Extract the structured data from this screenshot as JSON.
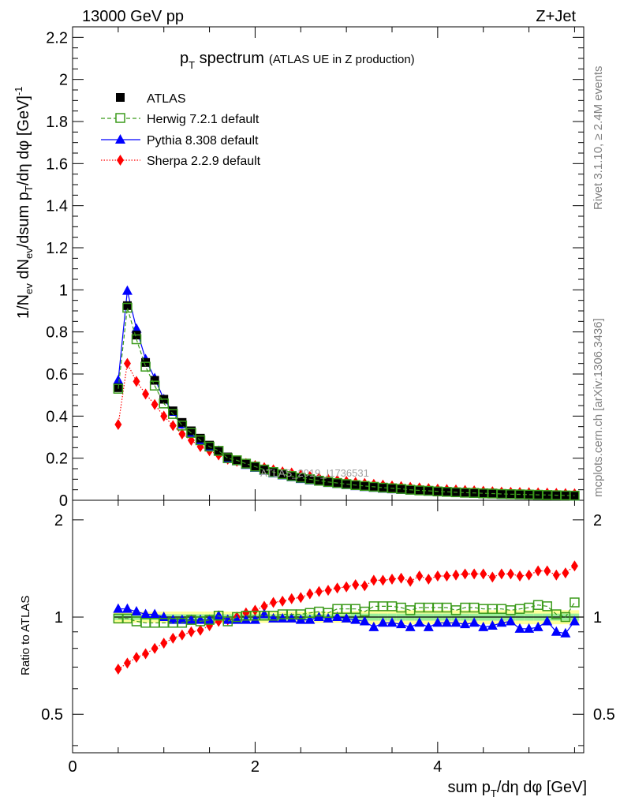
{
  "header": {
    "energy": "13000 GeV pp",
    "process": "Z+Jet",
    "title_main": "p",
    "title_sub": "T",
    "title_rest": " spectrum",
    "title_paren": "(ATLAS UE in Z production)"
  },
  "side": {
    "rivet": "Rivet 3.1.10, ≥ 2.4M events",
    "mcplots": "mcplots.cern.ch [arXiv:1306.3436]"
  },
  "watermark": "ATLAS_2019_I1736531",
  "legend": [
    {
      "label": "ATLAS",
      "color": "#000000",
      "marker": "filled-square"
    },
    {
      "label": "Herwig 7.2.1 default",
      "color": "#3a9a1a",
      "marker": "open-square"
    },
    {
      "label": "Pythia 8.308 default",
      "color": "#0000ff",
      "marker": "filled-triangle"
    },
    {
      "label": "Sherpa 2.2.9 default",
      "color": "#ff0000",
      "marker": "filled-diamond"
    }
  ],
  "axes": {
    "ylabel_main": "1/N_ev dN_ev/dsum p_T/dη dφ [GeV]^-1",
    "ylabel_ratio": "Ratio to ATLAS",
    "xlabel": "sum p_T/dη dφ [GeV]"
  },
  "chart_data": {
    "type": "line",
    "x": [
      0.5,
      0.6,
      0.7,
      0.8,
      0.9,
      1.0,
      1.1,
      1.2,
      1.3,
      1.4,
      1.5,
      1.6,
      1.7,
      1.8,
      1.9,
      2.0,
      2.1,
      2.2,
      2.3,
      2.4,
      2.5,
      2.6,
      2.7,
      2.8,
      2.9,
      3.0,
      3.1,
      3.2,
      3.3,
      3.4,
      3.5,
      3.6,
      3.7,
      3.8,
      3.9,
      4.0,
      4.1,
      4.2,
      4.3,
      4.4,
      4.5,
      4.6,
      4.7,
      4.8,
      4.9,
      5.0,
      5.1,
      5.2,
      5.3,
      5.4,
      5.5
    ],
    "xlim": [
      0,
      5.6
    ],
    "main": {
      "ylim": [
        0,
        2.25
      ],
      "yticks": [
        0,
        0.2,
        0.4,
        0.6,
        0.8,
        1,
        1.2,
        1.4,
        1.6,
        1.8,
        2,
        2.2
      ],
      "series": [
        {
          "name": "ATLAS",
          "values": [
            0.535,
            0.925,
            0.785,
            0.655,
            0.57,
            0.48,
            0.425,
            0.37,
            0.33,
            0.295,
            0.262,
            0.232,
            0.206,
            0.19,
            0.172,
            0.158,
            0.144,
            0.132,
            0.122,
            0.113,
            0.105,
            0.098,
            0.091,
            0.085,
            0.08,
            0.075,
            0.07,
            0.066,
            0.062,
            0.058,
            0.055,
            0.052,
            0.049,
            0.046,
            0.044,
            0.041,
            0.039,
            0.037,
            0.035,
            0.034,
            0.032,
            0.031,
            0.029,
            0.028,
            0.027,
            0.026,
            0.025,
            0.024,
            0.023,
            0.022,
            0.021
          ]
        },
        {
          "name": "Herwig 7.2.1 default",
          "values": [
            0.53,
            0.915,
            0.765,
            0.635,
            0.545,
            0.46,
            0.41,
            0.355,
            0.32,
            0.285,
            0.255,
            0.235,
            0.2,
            0.19,
            0.174,
            0.16,
            0.146,
            0.134,
            0.124,
            0.115,
            0.107,
            0.1,
            0.093,
            0.087,
            0.082,
            0.077,
            0.072,
            0.068,
            0.064,
            0.06,
            0.057,
            0.054,
            0.05,
            0.047,
            0.045,
            0.042,
            0.04,
            0.038,
            0.036,
            0.035,
            0.033,
            0.032,
            0.03,
            0.029,
            0.028,
            0.027,
            0.026,
            0.025,
            0.024,
            0.023,
            0.022
          ]
        },
        {
          "name": "Pythia 8.308 default",
          "values": [
            0.57,
            0.995,
            0.815,
            0.67,
            0.58,
            0.48,
            0.42,
            0.36,
            0.32,
            0.285,
            0.255,
            0.235,
            0.2,
            0.185,
            0.168,
            0.154,
            0.14,
            0.128,
            0.118,
            0.109,
            0.101,
            0.094,
            0.088,
            0.082,
            0.077,
            0.072,
            0.067,
            0.063,
            0.059,
            0.055,
            0.052,
            0.049,
            0.046,
            0.043,
            0.041,
            0.038,
            0.036,
            0.034,
            0.032,
            0.031,
            0.029,
            0.028,
            0.026,
            0.025,
            0.024,
            0.023,
            0.022,
            0.021,
            0.02,
            0.019,
            0.018
          ]
        },
        {
          "name": "Sherpa 2.2.9 default",
          "values": [
            0.36,
            0.65,
            0.565,
            0.505,
            0.455,
            0.4,
            0.355,
            0.315,
            0.285,
            0.255,
            0.235,
            0.215,
            0.195,
            0.185,
            0.175,
            0.165,
            0.155,
            0.145,
            0.135,
            0.13,
            0.12,
            0.113,
            0.106,
            0.1,
            0.095,
            0.09,
            0.085,
            0.08,
            0.076,
            0.072,
            0.068,
            0.065,
            0.062,
            0.059,
            0.056,
            0.053,
            0.051,
            0.049,
            0.047,
            0.045,
            0.043,
            0.041,
            0.039,
            0.038,
            0.037,
            0.036,
            0.035,
            0.034,
            0.033,
            0.032,
            0.031
          ]
        }
      ]
    },
    "ratio": {
      "ylim": [
        0.38,
        2.3
      ],
      "yticks": [
        0.5,
        1,
        2
      ],
      "series": [
        {
          "name": "Herwig 7.2.1 default",
          "values": [
            0.99,
            0.99,
            0.97,
            0.96,
            0.96,
            0.96,
            0.96,
            0.96,
            0.98,
            0.97,
            0.98,
            1.01,
            0.97,
            1.0,
            1.01,
            1.01,
            1.01,
            1.01,
            1.02,
            1.02,
            1.02,
            1.03,
            1.04,
            1.03,
            1.06,
            1.06,
            1.06,
            1.04,
            1.08,
            1.08,
            1.08,
            1.07,
            1.05,
            1.07,
            1.07,
            1.07,
            1.07,
            1.05,
            1.07,
            1.07,
            1.06,
            1.06,
            1.06,
            1.05,
            1.06,
            1.07,
            1.09,
            1.08,
            1.02,
            1.0,
            1.11
          ]
        },
        {
          "name": "Pythia 8.308 default",
          "values": [
            1.06,
            1.06,
            1.04,
            1.02,
            1.02,
            1.0,
            0.98,
            0.98,
            0.98,
            0.98,
            0.98,
            1.01,
            0.98,
            0.98,
            0.98,
            0.98,
            1.02,
            0.99,
            0.99,
            0.99,
            0.98,
            0.98,
            1.0,
            0.99,
            1.0,
            0.99,
            0.98,
            0.97,
            0.93,
            0.96,
            0.96,
            0.95,
            0.93,
            0.96,
            0.93,
            0.96,
            0.96,
            0.96,
            0.95,
            0.96,
            0.93,
            0.94,
            0.96,
            0.97,
            0.92,
            0.92,
            0.93,
            0.97,
            0.9,
            0.89,
            0.97
          ]
        },
        {
          "name": "Sherpa 2.2.9 default",
          "values": [
            0.69,
            0.72,
            0.75,
            0.77,
            0.8,
            0.83,
            0.86,
            0.88,
            0.9,
            0.91,
            0.94,
            0.97,
            0.98,
            1.0,
            1.03,
            1.05,
            1.08,
            1.11,
            1.12,
            1.14,
            1.15,
            1.18,
            1.2,
            1.21,
            1.23,
            1.24,
            1.26,
            1.25,
            1.3,
            1.3,
            1.31,
            1.32,
            1.29,
            1.34,
            1.31,
            1.34,
            1.34,
            1.35,
            1.36,
            1.36,
            1.36,
            1.33,
            1.36,
            1.36,
            1.34,
            1.35,
            1.39,
            1.39,
            1.35,
            1.37,
            1.44
          ]
        }
      ],
      "band_outer": [
        0.045,
        0.04,
        0.04,
        0.04,
        0.04,
        0.04,
        0.04,
        0.04,
        0.04,
        0.04,
        0.04,
        0.04,
        0.04,
        0.04,
        0.04,
        0.04,
        0.04,
        0.04,
        0.04,
        0.04,
        0.04,
        0.04,
        0.04,
        0.04,
        0.04,
        0.04,
        0.045,
        0.045,
        0.05,
        0.05,
        0.05,
        0.05,
        0.05,
        0.05,
        0.05,
        0.05,
        0.05,
        0.05,
        0.05,
        0.05,
        0.05,
        0.05,
        0.05,
        0.05,
        0.05,
        0.05,
        0.05,
        0.05,
        0.05,
        0.05,
        0.05
      ],
      "band_inner": [
        0.02,
        0.02,
        0.02,
        0.02,
        0.02,
        0.02,
        0.02,
        0.02,
        0.02,
        0.02,
        0.02,
        0.02,
        0.02,
        0.02,
        0.02,
        0.02,
        0.02,
        0.02,
        0.02,
        0.02,
        0.02,
        0.02,
        0.02,
        0.02,
        0.02,
        0.02,
        0.025,
        0.025,
        0.025,
        0.025,
        0.025,
        0.025,
        0.025,
        0.025,
        0.025,
        0.025,
        0.025,
        0.025,
        0.025,
        0.025,
        0.025,
        0.025,
        0.025,
        0.025,
        0.025,
        0.025,
        0.025,
        0.025,
        0.025,
        0.025,
        0.025
      ]
    },
    "xticks": [
      0,
      2,
      4
    ]
  }
}
